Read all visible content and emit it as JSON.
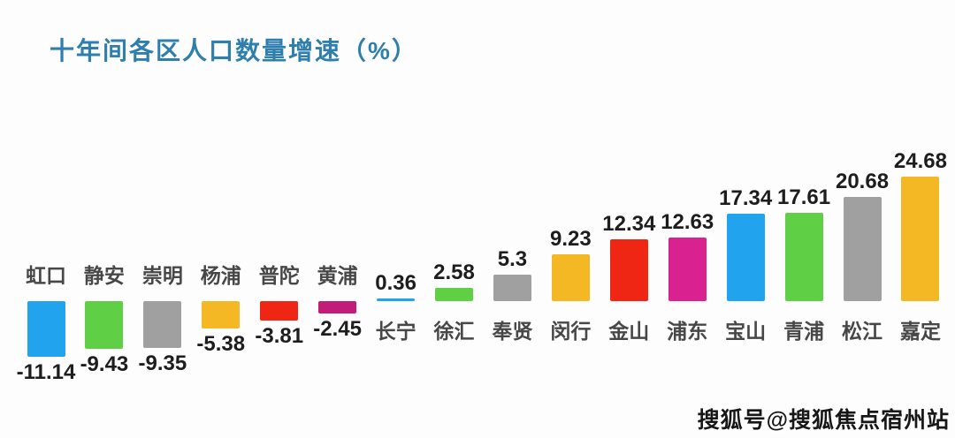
{
  "header": {
    "title": "十年间各区人口数量增速（%）",
    "title_color": "#2E7FAE"
  },
  "watermark": {
    "text": "搜狐号@搜狐焦点宿州站"
  },
  "chart_data": {
    "type": "bar",
    "title": "十年间各区人口数量增速（%）",
    "unit": "%",
    "categories": [
      "虹口",
      "静安",
      "崇明",
      "杨浦",
      "普陀",
      "黄浦",
      "长宁",
      "徐汇",
      "奉贤",
      "闵行",
      "金山",
      "浦东",
      "宝山",
      "青浦",
      "松江",
      "嘉定"
    ],
    "values": [
      -11.14,
      -9.43,
      -9.35,
      -5.38,
      -3.81,
      -2.45,
      0.36,
      2.58,
      5.3,
      9.23,
      12.34,
      12.63,
      17.34,
      17.61,
      20.68,
      24.68
    ],
    "value_labels": [
      "-11.14",
      "-9.43",
      "-9.35",
      "-5.38",
      "-3.81",
      "-2.45",
      "0.36",
      "2.58",
      "5.3",
      "9.23",
      "12.34",
      "12.63",
      "17.34",
      "17.61",
      "20.68",
      "24.68"
    ],
    "bar_colors": [
      "#22A3EE",
      "#5FD046",
      "#A0A0A0",
      "#F5B825",
      "#EF2613",
      "#C01C78",
      "#22A3EE",
      "#5FD046",
      "#A0A0A0",
      "#F5B825",
      "#EF2613",
      "#D92190",
      "#22A3EE",
      "#5FD046",
      "#A0A0A0",
      "#F5B825"
    ],
    "palette_cycle": [
      "#22A3EE",
      "#5FD046",
      "#A0A0A0",
      "#F5B825",
      "#EF2613",
      "#C01C78"
    ],
    "baseline": 0,
    "ylim": [
      -12,
      26
    ],
    "grid": false,
    "legend": false,
    "sort_order": "ascending",
    "label_position": "opposite-axis-side",
    "value_position": "bar-end"
  }
}
